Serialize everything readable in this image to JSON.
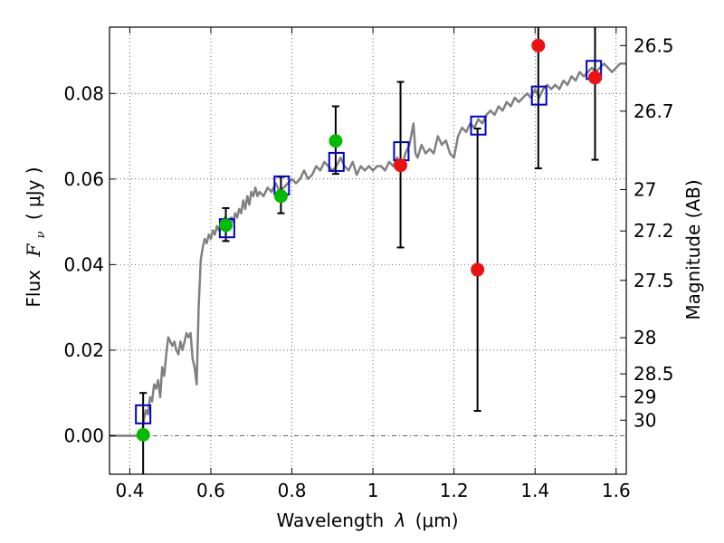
{
  "chart_data": {
    "type": "scatter",
    "xlabel_text": "Wavelength",
    "xlabel_symbol": "λ",
    "xlabel_unit": "(μm)",
    "ylabel_text": "Flux",
    "ylabel_symbol": "F",
    "ylabel_sub": "ν",
    "ylabel_unit": "( μJy )",
    "ylabel_right": "Magnitude (AB)",
    "xlim": [
      0.35,
      1.625
    ],
    "ylim": [
      -0.009,
      0.0955
    ],
    "grid": true,
    "x_ticks": [
      0.4,
      0.6,
      0.8,
      1.0,
      1.2,
      1.4,
      1.6
    ],
    "x_tick_labels": [
      "0.4",
      "0.6",
      "0.8",
      "1",
      "1.2",
      "1.4",
      "1.6"
    ],
    "y_ticks": [
      0.0,
      0.02,
      0.04,
      0.06,
      0.08
    ],
    "y_tick_labels": [
      "0.00",
      "0.02",
      "0.04",
      "0.06",
      "0.08"
    ],
    "magnitude_ticks": [
      26.5,
      26.7,
      27,
      27.2,
      27.5,
      28,
      28.5,
      29,
      30
    ],
    "magnitude_tick_labels": [
      "26.5",
      "26.7",
      "27",
      "27.2",
      "27.5",
      "28",
      "28.5",
      "29",
      "30"
    ],
    "colors": {
      "spectrum": "#808080",
      "model_box": "#0000cc",
      "detected": "#00bb00",
      "undetected": "#ee1111",
      "errorbar": "#000000",
      "zero_line": "#555555"
    },
    "spectrum": [
      [
        0.35,
        0.0
      ],
      [
        0.43,
        0.0
      ],
      [
        0.435,
        0.004
      ],
      [
        0.44,
        0.006
      ],
      [
        0.445,
        0.005
      ],
      [
        0.45,
        0.009
      ],
      [
        0.455,
        0.008
      ],
      [
        0.46,
        0.012
      ],
      [
        0.465,
        0.011
      ],
      [
        0.47,
        0.013
      ],
      [
        0.475,
        0.009
      ],
      [
        0.48,
        0.016
      ],
      [
        0.485,
        0.014
      ],
      [
        0.49,
        0.019
      ],
      [
        0.495,
        0.023
      ],
      [
        0.5,
        0.022
      ],
      [
        0.505,
        0.021
      ],
      [
        0.51,
        0.022
      ],
      [
        0.515,
        0.02
      ],
      [
        0.52,
        0.019
      ],
      [
        0.525,
        0.022
      ],
      [
        0.53,
        0.02
      ],
      [
        0.535,
        0.022
      ],
      [
        0.54,
        0.024
      ],
      [
        0.545,
        0.023
      ],
      [
        0.55,
        0.024
      ],
      [
        0.555,
        0.018
      ],
      [
        0.56,
        0.016
      ],
      [
        0.565,
        0.012
      ],
      [
        0.57,
        0.03
      ],
      [
        0.575,
        0.041
      ],
      [
        0.58,
        0.044
      ],
      [
        0.585,
        0.046
      ],
      [
        0.59,
        0.045
      ],
      [
        0.595,
        0.047
      ],
      [
        0.6,
        0.046
      ],
      [
        0.605,
        0.048
      ],
      [
        0.61,
        0.047
      ],
      [
        0.615,
        0.049
      ],
      [
        0.62,
        0.048
      ],
      [
        0.625,
        0.05
      ],
      [
        0.63,
        0.049
      ],
      [
        0.635,
        0.051
      ],
      [
        0.64,
        0.049
      ],
      [
        0.645,
        0.05
      ],
      [
        0.65,
        0.051
      ],
      [
        0.655,
        0.05
      ],
      [
        0.66,
        0.052
      ],
      [
        0.665,
        0.051
      ],
      [
        0.67,
        0.053
      ],
      [
        0.675,
        0.052
      ],
      [
        0.68,
        0.055
      ],
      [
        0.685,
        0.053
      ],
      [
        0.69,
        0.056
      ],
      [
        0.695,
        0.054
      ],
      [
        0.7,
        0.057
      ],
      [
        0.705,
        0.056
      ],
      [
        0.71,
        0.058
      ],
      [
        0.715,
        0.056
      ],
      [
        0.72,
        0.057
      ],
      [
        0.73,
        0.056
      ],
      [
        0.74,
        0.058
      ],
      [
        0.75,
        0.057
      ],
      [
        0.76,
        0.059
      ],
      [
        0.77,
        0.057
      ],
      [
        0.78,
        0.058
      ],
      [
        0.79,
        0.059
      ],
      [
        0.8,
        0.06
      ],
      [
        0.81,
        0.059
      ],
      [
        0.82,
        0.06
      ],
      [
        0.83,
        0.062
      ],
      [
        0.84,
        0.06
      ],
      [
        0.85,
        0.061
      ],
      [
        0.86,
        0.063
      ],
      [
        0.87,
        0.062
      ],
      [
        0.88,
        0.064
      ],
      [
        0.89,
        0.063
      ],
      [
        0.9,
        0.062
      ],
      [
        0.91,
        0.063
      ],
      [
        0.92,
        0.065
      ],
      [
        0.93,
        0.063
      ],
      [
        0.94,
        0.062
      ],
      [
        0.95,
        0.064
      ],
      [
        0.96,
        0.061
      ],
      [
        0.97,
        0.063
      ],
      [
        0.98,
        0.062
      ],
      [
        0.99,
        0.063
      ],
      [
        1.0,
        0.062
      ],
      [
        1.01,
        0.063
      ],
      [
        1.02,
        0.063
      ],
      [
        1.03,
        0.062
      ],
      [
        1.04,
        0.064
      ],
      [
        1.05,
        0.063
      ],
      [
        1.06,
        0.065
      ],
      [
        1.07,
        0.062
      ],
      [
        1.08,
        0.066
      ],
      [
        1.09,
        0.068
      ],
      [
        1.1,
        0.073
      ],
      [
        1.105,
        0.066
      ],
      [
        1.11,
        0.065
      ],
      [
        1.12,
        0.068
      ],
      [
        1.13,
        0.066
      ],
      [
        1.14,
        0.067
      ],
      [
        1.15,
        0.066
      ],
      [
        1.16,
        0.07
      ],
      [
        1.17,
        0.068
      ],
      [
        1.18,
        0.069
      ],
      [
        1.19,
        0.066
      ],
      [
        1.2,
        0.065
      ],
      [
        1.21,
        0.07
      ],
      [
        1.22,
        0.072
      ],
      [
        1.23,
        0.071
      ],
      [
        1.24,
        0.073
      ],
      [
        1.25,
        0.072
      ],
      [
        1.26,
        0.074
      ],
      [
        1.27,
        0.073
      ],
      [
        1.28,
        0.075
      ],
      [
        1.29,
        0.076
      ],
      [
        1.3,
        0.075
      ],
      [
        1.31,
        0.077
      ],
      [
        1.32,
        0.076
      ],
      [
        1.33,
        0.078
      ],
      [
        1.34,
        0.077
      ],
      [
        1.35,
        0.079
      ],
      [
        1.36,
        0.078
      ],
      [
        1.37,
        0.079
      ],
      [
        1.38,
        0.08
      ],
      [
        1.39,
        0.079
      ],
      [
        1.4,
        0.081
      ],
      [
        1.41,
        0.079
      ],
      [
        1.42,
        0.081
      ],
      [
        1.43,
        0.082
      ],
      [
        1.44,
        0.081
      ],
      [
        1.45,
        0.082
      ],
      [
        1.46,
        0.081
      ],
      [
        1.47,
        0.083
      ],
      [
        1.48,
        0.082
      ],
      [
        1.49,
        0.084
      ],
      [
        1.5,
        0.083
      ],
      [
        1.51,
        0.085
      ],
      [
        1.52,
        0.084
      ],
      [
        1.53,
        0.085
      ],
      [
        1.54,
        0.086
      ],
      [
        1.55,
        0.085
      ],
      [
        1.56,
        0.086
      ],
      [
        1.57,
        0.087
      ],
      [
        1.58,
        0.086
      ],
      [
        1.59,
        0.085
      ],
      [
        1.6,
        0.086
      ],
      [
        1.61,
        0.087
      ],
      [
        1.625,
        0.087
      ]
    ],
    "model_boxes": [
      [
        0.433,
        0.005
      ],
      [
        0.64,
        0.0485
      ],
      [
        0.775,
        0.0585
      ],
      [
        0.91,
        0.064
      ],
      [
        1.07,
        0.0665
      ],
      [
        1.26,
        0.0725
      ],
      [
        1.41,
        0.0795
      ],
      [
        1.545,
        0.0855
      ]
    ],
    "detected": [
      {
        "x": 0.433,
        "y": 0.0002,
        "err_low": -0.009,
        "err_high": 0.01
      },
      {
        "x": 0.637,
        "y": 0.0492,
        "err_low": 0.0455,
        "err_high": 0.0532
      },
      {
        "x": 0.773,
        "y": 0.056,
        "err_low": 0.052,
        "err_high": 0.0605
      },
      {
        "x": 0.908,
        "y": 0.0689,
        "err_low": 0.0612,
        "err_high": 0.077
      }
    ],
    "undetected": [
      {
        "x": 1.068,
        "y": 0.0632,
        "err_low": 0.044,
        "err_high": 0.0827
      },
      {
        "x": 1.258,
        "y": 0.0388,
        "err_low": 0.0058,
        "err_high": 0.0718
      },
      {
        "x": 1.408,
        "y": 0.0912,
        "err_low": 0.0625,
        "err_high": 0.0955
      },
      {
        "x": 1.548,
        "y": 0.0837,
        "err_low": 0.0645,
        "err_high": 0.0955
      }
    ]
  }
}
